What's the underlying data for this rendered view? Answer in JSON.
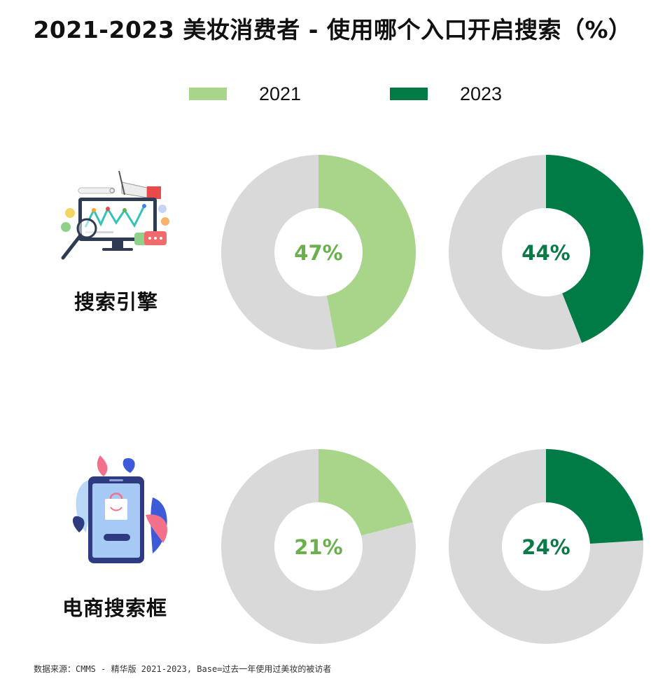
{
  "title": "2021-2023 美妆消费者 - 使用哪个入口开启搜索（%）",
  "legend": [
    {
      "label": "2021",
      "color": "#a9d58b"
    },
    {
      "label": "2023",
      "color": "#007b45"
    }
  ],
  "colors": {
    "remainder": "#d9d9d9",
    "label_2021": "#6ab04c",
    "label_2023": "#0b7a47"
  },
  "rows": [
    {
      "label": "搜索引擎",
      "icon": "search-engine-analytics-icon"
    },
    {
      "label": "电商搜索框",
      "icon": "mobile-shopping-icon"
    }
  ],
  "chart_data": {
    "type": "pie",
    "title": "2021-2023 美妆消费者 - 使用哪个入口开启搜索（%）",
    "unit": "%",
    "categories": [
      "搜索引擎",
      "电商搜索框"
    ],
    "series": [
      {
        "name": "2021",
        "values": [
          47,
          21
        ]
      },
      {
        "name": "2023",
        "values": [
          44,
          24
        ]
      }
    ],
    "display_labels": [
      [
        "47%",
        "44%"
      ],
      [
        "21%",
        "24%"
      ]
    ],
    "legend_position": "top"
  },
  "footnote": "数据来源：CMMS - 精华版 2021-2023, Base=过去一年使用过美妆的被访者"
}
